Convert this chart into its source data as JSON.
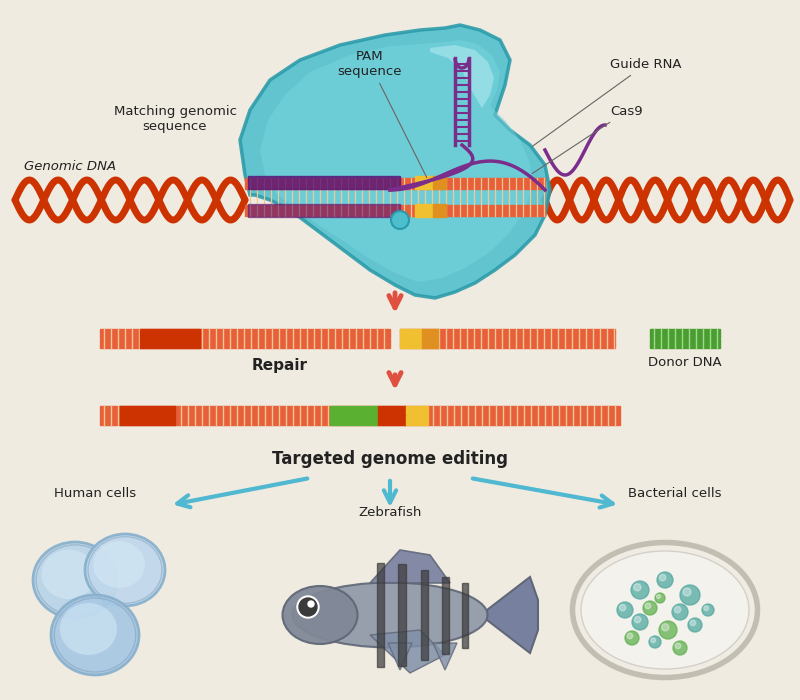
{
  "bg_color": "#f0ebe0",
  "labels": {
    "genomic_dna": "Genomic DNA",
    "pam": "PAM\nsequence",
    "guide_rna": "Guide RNA",
    "cas9": "Cas9",
    "matching": "Matching genomic\nsequence",
    "repair": "Repair",
    "donor_dna": "Donor DNA",
    "targeted": "Targeted genome editing",
    "human_cells": "Human cells",
    "zebrafish": "Zebrafish",
    "bacterial_cells": "Bacterial cells"
  },
  "colors": {
    "cas9_outer": "#4dbfcc",
    "cas9_inner": "#7dd8e2",
    "cas9_edge": "#2a9aaa",
    "cas9_highlight": "#b0e8ee",
    "dna_red": "#cc3300",
    "dna_orange": "#e8603a",
    "dna_rung": "#f0c898",
    "guide_rna_purple": "#7b2d8b",
    "matching_purple": "#5a1a7a",
    "pam_yellow": "#f0c030",
    "pam_gold": "#e09020",
    "inserted_green": "#5ab030",
    "inserted_red": "#cc3300",
    "inserted_yellow": "#f0c030",
    "arrow_red": "#e05040",
    "arrow_blue": "#50b8d0",
    "donor_green": "#4a9e30",
    "text_dark": "#222222",
    "cell_blue_outer": "#a8c8e0",
    "cell_blue_inner": "#c8dff0",
    "cell_blue_highlight": "#e0f0ff",
    "petri_bg": "#f5f5f2",
    "petri_edge": "#c8c8c0",
    "colony_teal": "#50a8a0",
    "colony_green": "#60b050",
    "fish_body": "#9098a8",
    "fish_dark": "#606878"
  }
}
